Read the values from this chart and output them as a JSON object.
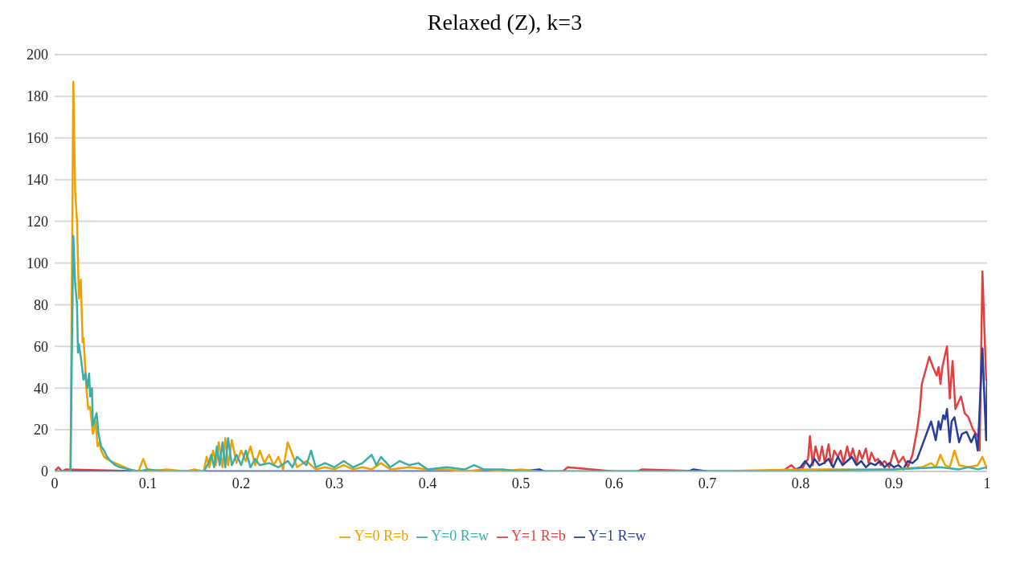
{
  "chart_data": {
    "type": "line",
    "title": "Relaxed (Z), k=3",
    "xlim": [
      0,
      1
    ],
    "xticks": [
      0,
      0.1,
      0.2,
      0.3,
      0.4,
      0.5,
      0.6,
      0.7,
      0.8,
      0.9,
      1
    ],
    "ylim": [
      0,
      200
    ],
    "yticks": [
      0,
      20,
      40,
      60,
      80,
      100,
      120,
      140,
      160,
      180,
      200
    ],
    "grid": "y",
    "legend": "bottom",
    "marker": "none",
    "line_style": "solid",
    "series": [
      {
        "name": "Y=1 R=b",
        "color": "#e04040",
        "x": [
          0,
          0.004,
          0.008,
          0.012,
          0.1,
          0.3,
          0.5,
          0.545,
          0.55,
          0.6,
          0.625,
          0.63,
          0.7,
          0.76,
          0.78,
          0.79,
          0.795,
          0.8,
          0.805,
          0.808,
          0.81,
          0.813,
          0.816,
          0.82,
          0.823,
          0.826,
          0.83,
          0.833,
          0.836,
          0.84,
          0.843,
          0.846,
          0.85,
          0.853,
          0.856,
          0.86,
          0.863,
          0.866,
          0.87,
          0.873,
          0.876,
          0.88,
          0.883,
          0.886,
          0.89,
          0.895,
          0.9,
          0.905,
          0.91,
          0.915,
          0.92,
          0.925,
          0.928,
          0.93,
          0.935,
          0.938,
          0.942,
          0.946,
          0.948,
          0.95,
          0.952,
          0.957,
          0.96,
          0.963,
          0.966,
          0.972,
          0.976,
          0.98,
          0.985,
          0.99,
          0.992,
          0.995,
          0.999,
          1
        ],
        "values": [
          0,
          2,
          0,
          1,
          0,
          0,
          0,
          0,
          2,
          0,
          0,
          1,
          0,
          0,
          0,
          3,
          1,
          0,
          4,
          6,
          17,
          3,
          12,
          5,
          12,
          4,
          13,
          3,
          10,
          7,
          10,
          4,
          12,
          6,
          11,
          4,
          10,
          6,
          11,
          4,
          9,
          5,
          6,
          3,
          5,
          2,
          10,
          4,
          7,
          2,
          8,
          20,
          30,
          42,
          50,
          55,
          50,
          46,
          50,
          42,
          50,
          60,
          35,
          53,
          30,
          36,
          28,
          26,
          20,
          17,
          10,
          96,
          44,
          44
        ]
      },
      {
        "name": "Y=1 R=w",
        "color": "#283e9a",
        "x": [
          0,
          0.5,
          0.52,
          0.525,
          0.6,
          0.68,
          0.685,
          0.7,
          0.79,
          0.8,
          0.805,
          0.81,
          0.815,
          0.82,
          0.825,
          0.83,
          0.835,
          0.84,
          0.845,
          0.85,
          0.855,
          0.86,
          0.865,
          0.87,
          0.875,
          0.88,
          0.885,
          0.89,
          0.895,
          0.9,
          0.905,
          0.91,
          0.915,
          0.92,
          0.925,
          0.93,
          0.935,
          0.94,
          0.945,
          0.948,
          0.95,
          0.953,
          0.955,
          0.957,
          0.96,
          0.962,
          0.965,
          0.97,
          0.973,
          0.978,
          0.983,
          0.987,
          0.99,
          0.995,
          0.999,
          1
        ],
        "values": [
          0,
          0,
          1,
          0,
          0,
          0,
          1,
          0,
          0,
          2,
          5,
          2,
          6,
          3,
          4,
          6,
          2,
          7,
          3,
          5,
          7,
          3,
          5,
          2,
          4,
          3,
          5,
          2,
          4,
          2,
          3,
          1,
          5,
          4,
          6,
          12,
          18,
          24,
          15,
          24,
          20,
          27,
          25,
          30,
          14,
          24,
          26,
          14,
          18,
          19,
          14,
          18,
          10,
          59,
          15,
          44
        ]
      },
      {
        "name": "Y=0 R=b",
        "color": "#f0a000",
        "x": [
          0,
          0.017,
          0.02,
          0.022,
          0.024,
          0.026,
          0.028,
          0.03,
          0.031,
          0.034,
          0.036,
          0.038,
          0.041,
          0.044,
          0.046,
          0.048,
          0.05,
          0.053,
          0.056,
          0.06,
          0.065,
          0.07,
          0.08,
          0.09,
          0.095,
          0.1,
          0.12,
          0.14,
          0.15,
          0.16,
          0.163,
          0.166,
          0.17,
          0.173,
          0.176,
          0.18,
          0.183,
          0.186,
          0.19,
          0.195,
          0.2,
          0.205,
          0.21,
          0.215,
          0.22,
          0.225,
          0.23,
          0.235,
          0.24,
          0.245,
          0.25,
          0.26,
          0.27,
          0.28,
          0.29,
          0.3,
          0.31,
          0.32,
          0.33,
          0.34,
          0.35,
          0.36,
          0.38,
          0.4,
          0.42,
          0.44,
          0.46,
          0.48,
          0.5,
          0.52,
          0.55,
          0.6,
          0.7,
          0.8,
          0.9,
          0.93,
          0.94,
          0.945,
          0.95,
          0.955,
          0.96,
          0.965,
          0.97,
          0.98,
          0.99,
          0.995,
          1
        ],
        "values": [
          0,
          0,
          187,
          134,
          120,
          83,
          92,
          62,
          64,
          40,
          30,
          31,
          18,
          24,
          12,
          14,
          10,
          7,
          6,
          5,
          4,
          3,
          1,
          0,
          6,
          0,
          1,
          0,
          1,
          0,
          7,
          2,
          10,
          3,
          14,
          2,
          16,
          3,
          15,
          4,
          10,
          5,
          12,
          3,
          10,
          4,
          8,
          3,
          7,
          1,
          14,
          2,
          5,
          1,
          2,
          1,
          3,
          1,
          2,
          1,
          4,
          1,
          2,
          1,
          1,
          0,
          1,
          0,
          1,
          0,
          0,
          0,
          0,
          1,
          1,
          2,
          4,
          2,
          8,
          3,
          2,
          10,
          3,
          2,
          3,
          7,
          1
        ]
      },
      {
        "name": "Y=0 R=w",
        "color": "#3aaea8",
        "x": [
          0,
          0.017,
          0.02,
          0.022,
          0.024,
          0.025,
          0.026,
          0.028,
          0.031,
          0.033,
          0.035,
          0.037,
          0.038,
          0.04,
          0.041,
          0.045,
          0.047,
          0.05,
          0.053,
          0.056,
          0.06,
          0.065,
          0.07,
          0.08,
          0.09,
          0.1,
          0.12,
          0.14,
          0.16,
          0.165,
          0.168,
          0.171,
          0.174,
          0.177,
          0.18,
          0.183,
          0.186,
          0.19,
          0.195,
          0.2,
          0.205,
          0.21,
          0.215,
          0.22,
          0.23,
          0.24,
          0.25,
          0.255,
          0.26,
          0.27,
          0.275,
          0.28,
          0.29,
          0.3,
          0.31,
          0.32,
          0.33,
          0.34,
          0.345,
          0.35,
          0.36,
          0.37,
          0.38,
          0.39,
          0.4,
          0.42,
          0.44,
          0.45,
          0.46,
          0.48,
          0.5,
          0.55,
          0.6,
          0.8,
          0.9,
          0.95,
          0.97,
          0.98,
          0.99,
          1
        ],
        "values": [
          0,
          0,
          113,
          90,
          80,
          57,
          61,
          55,
          44,
          47,
          40,
          47,
          36,
          40,
          22,
          28,
          18,
          12,
          10,
          7,
          5,
          3,
          2,
          1,
          0,
          1,
          0,
          0,
          0,
          4,
          8,
          2,
          12,
          3,
          14,
          2,
          16,
          3,
          8,
          3,
          10,
          2,
          6,
          3,
          4,
          2,
          5,
          2,
          7,
          3,
          10,
          2,
          4,
          2,
          5,
          2,
          4,
          8,
          3,
          7,
          2,
          5,
          3,
          4,
          1,
          2,
          1,
          3,
          1,
          1,
          0,
          0,
          0,
          0,
          1,
          2,
          1,
          2,
          1,
          2
        ]
      }
    ]
  }
}
